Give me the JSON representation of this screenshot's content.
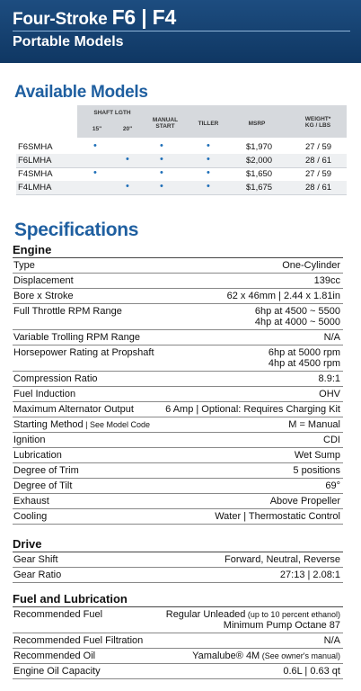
{
  "header": {
    "title_prefix": "Four-Stroke ",
    "title_models": "F6 | F4",
    "subtitle": "Portable Models"
  },
  "available": {
    "title": "Available Models",
    "headers": {
      "shaft_length": "SHAFT LGTH",
      "shaft_15": "15\"",
      "shaft_20": "20\"",
      "manual_start_1": "MANUAL",
      "manual_start_2": "START",
      "tiller": "TILLER",
      "msrp": "MSRP",
      "weight_1": "WEIGHT*",
      "weight_2": "KG / LBS"
    },
    "dot": "•",
    "models": [
      {
        "name": "F6SMHA",
        "s15": true,
        "s20": false,
        "manual": true,
        "tiller": true,
        "msrp": "$1,970",
        "weight": "27 / 59"
      },
      {
        "name": "F6LMHA",
        "s15": false,
        "s20": true,
        "manual": true,
        "tiller": true,
        "msrp": "$2,000",
        "weight": "28 / 61"
      },
      {
        "name": "F4SMHA",
        "s15": true,
        "s20": false,
        "manual": true,
        "tiller": true,
        "msrp": "$1,650",
        "weight": "27 / 59"
      },
      {
        "name": "F4LMHA",
        "s15": false,
        "s20": true,
        "manual": true,
        "tiller": true,
        "msrp": "$1,675",
        "weight": "28 / 61"
      }
    ]
  },
  "specifications": {
    "title": "Specifications",
    "engine": {
      "title": "Engine",
      "rows": [
        {
          "label": "Type",
          "value": "One-Cylinder"
        },
        {
          "label": "Displacement",
          "value": "139cc"
        },
        {
          "label": "Bore x Stroke",
          "value": "62 x 46mm | 2.44 x 1.81in"
        },
        {
          "label": "Full Throttle RPM Range",
          "value": "6hp at 4500 ~ 5500",
          "value2": "4hp at 4000 ~ 5000"
        },
        {
          "label": "Variable Trolling RPM Range",
          "value": "N/A"
        },
        {
          "label": "Horsepower Rating at Propshaft",
          "value": "6hp at 5000 rpm",
          "value2": "4hp at 4500 rpm"
        },
        {
          "label": "Compression Ratio",
          "value": "8.9:1"
        },
        {
          "label": "Fuel Induction",
          "value": "OHV"
        },
        {
          "label": "Maximum Alternator Output",
          "value": "6 Amp | Optional: Requires Charging Kit"
        },
        {
          "label": "Starting Method",
          "label_small": " | See Model Code",
          "value": "M = Manual"
        },
        {
          "label": "Ignition",
          "value": "CDI"
        },
        {
          "label": "Lubrication",
          "value": "Wet Sump"
        },
        {
          "label": "Degree of Trim",
          "value": "5 positions"
        },
        {
          "label": "Degree of Tilt",
          "value": "69°"
        },
        {
          "label": "Exhaust",
          "value": "Above Propeller"
        },
        {
          "label": "Cooling",
          "value": "Water | Thermostatic Control"
        }
      ]
    },
    "drive": {
      "title": "Drive",
      "rows": [
        {
          "label": "Gear Shift",
          "value": "Forward, Neutral, Reverse"
        },
        {
          "label": "Gear Ratio",
          "value": "27:13 | 2.08:1"
        }
      ]
    },
    "fuel": {
      "title": "Fuel and Lubrication",
      "rows": [
        {
          "label": "Recommended Fuel",
          "value": "Regular Unleaded",
          "value_small": " (up to 10 percent ethanol)",
          "value2": "Minimum Pump Octane 87"
        },
        {
          "label": "Recommended Fuel Filtration",
          "value": "N/A"
        },
        {
          "label": "Recommended Oil",
          "value": "Yamalube® 4M",
          "value_small": " (See owner's manual)"
        },
        {
          "label": "Engine Oil Capacity",
          "value": "0.6L | 0.63 qt"
        }
      ]
    }
  }
}
